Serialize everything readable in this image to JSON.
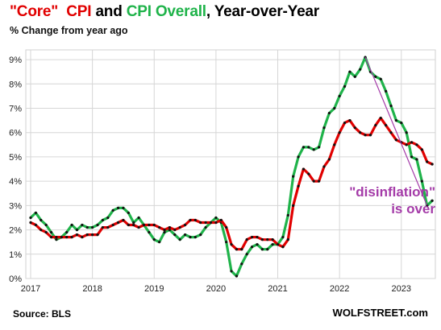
{
  "title": {
    "parts": [
      {
        "text": "\"Core\"",
        "color": "#e10000"
      },
      {
        "text": "  ",
        "color": "#000000"
      },
      {
        "text": "CPI",
        "color": "#e10000"
      },
      {
        "text": " and ",
        "color": "#000000"
      },
      {
        "text": "CPI Overall",
        "color": "#1fb34a"
      },
      {
        "text": ", Year-over-Year",
        "color": "#000000"
      }
    ]
  },
  "subtitle": "% Change from year ago",
  "source": "Source: BLS",
  "brand": "WOLFSTREET.com",
  "annotation": {
    "line1": "\"disinflation\"",
    "line2": "is over",
    "color": "#a43ba8"
  },
  "chart_data": {
    "type": "line",
    "x_start": "2017-01",
    "x_ticks": [
      "2017",
      "2018",
      "2019",
      "2020",
      "2021",
      "2022",
      "2023"
    ],
    "y_ticks": [
      "0%",
      "1%",
      "2%",
      "3%",
      "4%",
      "5%",
      "6%",
      "7%",
      "8%",
      "9%"
    ],
    "ylim": [
      0,
      9.4
    ],
    "xlim": [
      "2017-01",
      "2023-07"
    ],
    "grid": true,
    "series": [
      {
        "name": "CPI Overall",
        "color": "#1fb34a",
        "values": [
          2.5,
          2.7,
          2.4,
          2.2,
          1.9,
          1.6,
          1.7,
          1.9,
          2.2,
          2.0,
          2.2,
          2.1,
          2.1,
          2.2,
          2.4,
          2.5,
          2.8,
          2.9,
          2.9,
          2.7,
          2.3,
          2.5,
          2.2,
          1.9,
          1.6,
          1.5,
          1.9,
          2.0,
          1.8,
          1.6,
          1.8,
          1.7,
          1.7,
          1.8,
          2.1,
          2.3,
          2.5,
          2.3,
          1.5,
          0.3,
          0.1,
          0.6,
          1.0,
          1.3,
          1.4,
          1.2,
          1.2,
          1.4,
          1.4,
          1.7,
          2.6,
          4.2,
          5.0,
          5.4,
          5.4,
          5.3,
          5.4,
          6.2,
          6.8,
          7.0,
          7.5,
          7.9,
          8.5,
          8.3,
          8.6,
          9.1,
          8.5,
          8.3,
          8.2,
          7.7,
          7.1,
          6.5,
          6.4,
          6.0,
          5.0,
          4.9,
          4.0,
          3.0,
          3.2
        ]
      },
      {
        "name": "\"Core\" CPI",
        "color": "#e10000",
        "values": [
          2.3,
          2.2,
          2.0,
          1.9,
          1.7,
          1.7,
          1.7,
          1.7,
          1.7,
          1.8,
          1.7,
          1.8,
          1.8,
          1.8,
          2.1,
          2.1,
          2.2,
          2.3,
          2.4,
          2.2,
          2.2,
          2.1,
          2.2,
          2.2,
          2.2,
          2.1,
          2.0,
          2.1,
          2.0,
          2.1,
          2.2,
          2.4,
          2.4,
          2.3,
          2.3,
          2.3,
          2.3,
          2.4,
          2.1,
          1.4,
          1.2,
          1.2,
          1.6,
          1.7,
          1.7,
          1.6,
          1.6,
          1.6,
          1.4,
          1.3,
          1.6,
          3.0,
          3.8,
          4.5,
          4.3,
          4.0,
          4.0,
          4.6,
          4.9,
          5.5,
          6.0,
          6.4,
          6.5,
          6.2,
          6.0,
          5.9,
          5.9,
          6.3,
          6.6,
          6.3,
          6.0,
          5.7,
          5.6,
          5.5,
          5.6,
          5.5,
          5.3,
          4.8,
          4.7
        ]
      }
    ],
    "trend_line": {
      "from": {
        "x": "2022-06",
        "y": 9.1
      },
      "to": {
        "x": "2023-06",
        "y": 3.0
      },
      "color": "#a43ba8"
    }
  }
}
